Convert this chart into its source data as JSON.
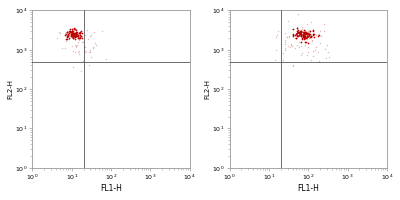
{
  "xlim": [
    1,
    10000
  ],
  "ylim": [
    1,
    10000
  ],
  "xlabel": "FL1-H",
  "ylabel": "FL2-H",
  "gate_x": 20,
  "gate_y": 500,
  "background_color": "#ffffff",
  "spine_color": "#999999",
  "gate_color": "#555555",
  "plot1": {
    "cluster_x_log_mean": 1.05,
    "cluster_x_log_std": 0.1,
    "cluster_y_log_mean": 3.4,
    "cluster_y_log_std": 0.07,
    "n_cluster": 90,
    "scatter_x_log_mean": 1.25,
    "scatter_x_log_std": 0.3,
    "scatter_y_log_mean": 3.1,
    "scatter_y_log_std": 0.28,
    "n_scatter": 50
  },
  "plot2": {
    "cluster_x_log_mean": 1.9,
    "cluster_x_log_std": 0.13,
    "cluster_y_log_mean": 3.4,
    "cluster_y_log_std": 0.07,
    "n_cluster": 100,
    "scatter_x_log_mean": 1.9,
    "scatter_x_log_std": 0.38,
    "scatter_y_log_mean": 3.15,
    "scatter_y_log_std": 0.3,
    "n_scatter": 80
  },
  "dot_color_dense": "#bb0000",
  "dot_color_sparse": "#ddaaaa",
  "dot_size_dense": 1.5,
  "dot_size_sparse": 1.0,
  "label_fontsize": 5.5,
  "tick_fontsize": 4.5,
  "ylabel_fontsize": 5.0
}
